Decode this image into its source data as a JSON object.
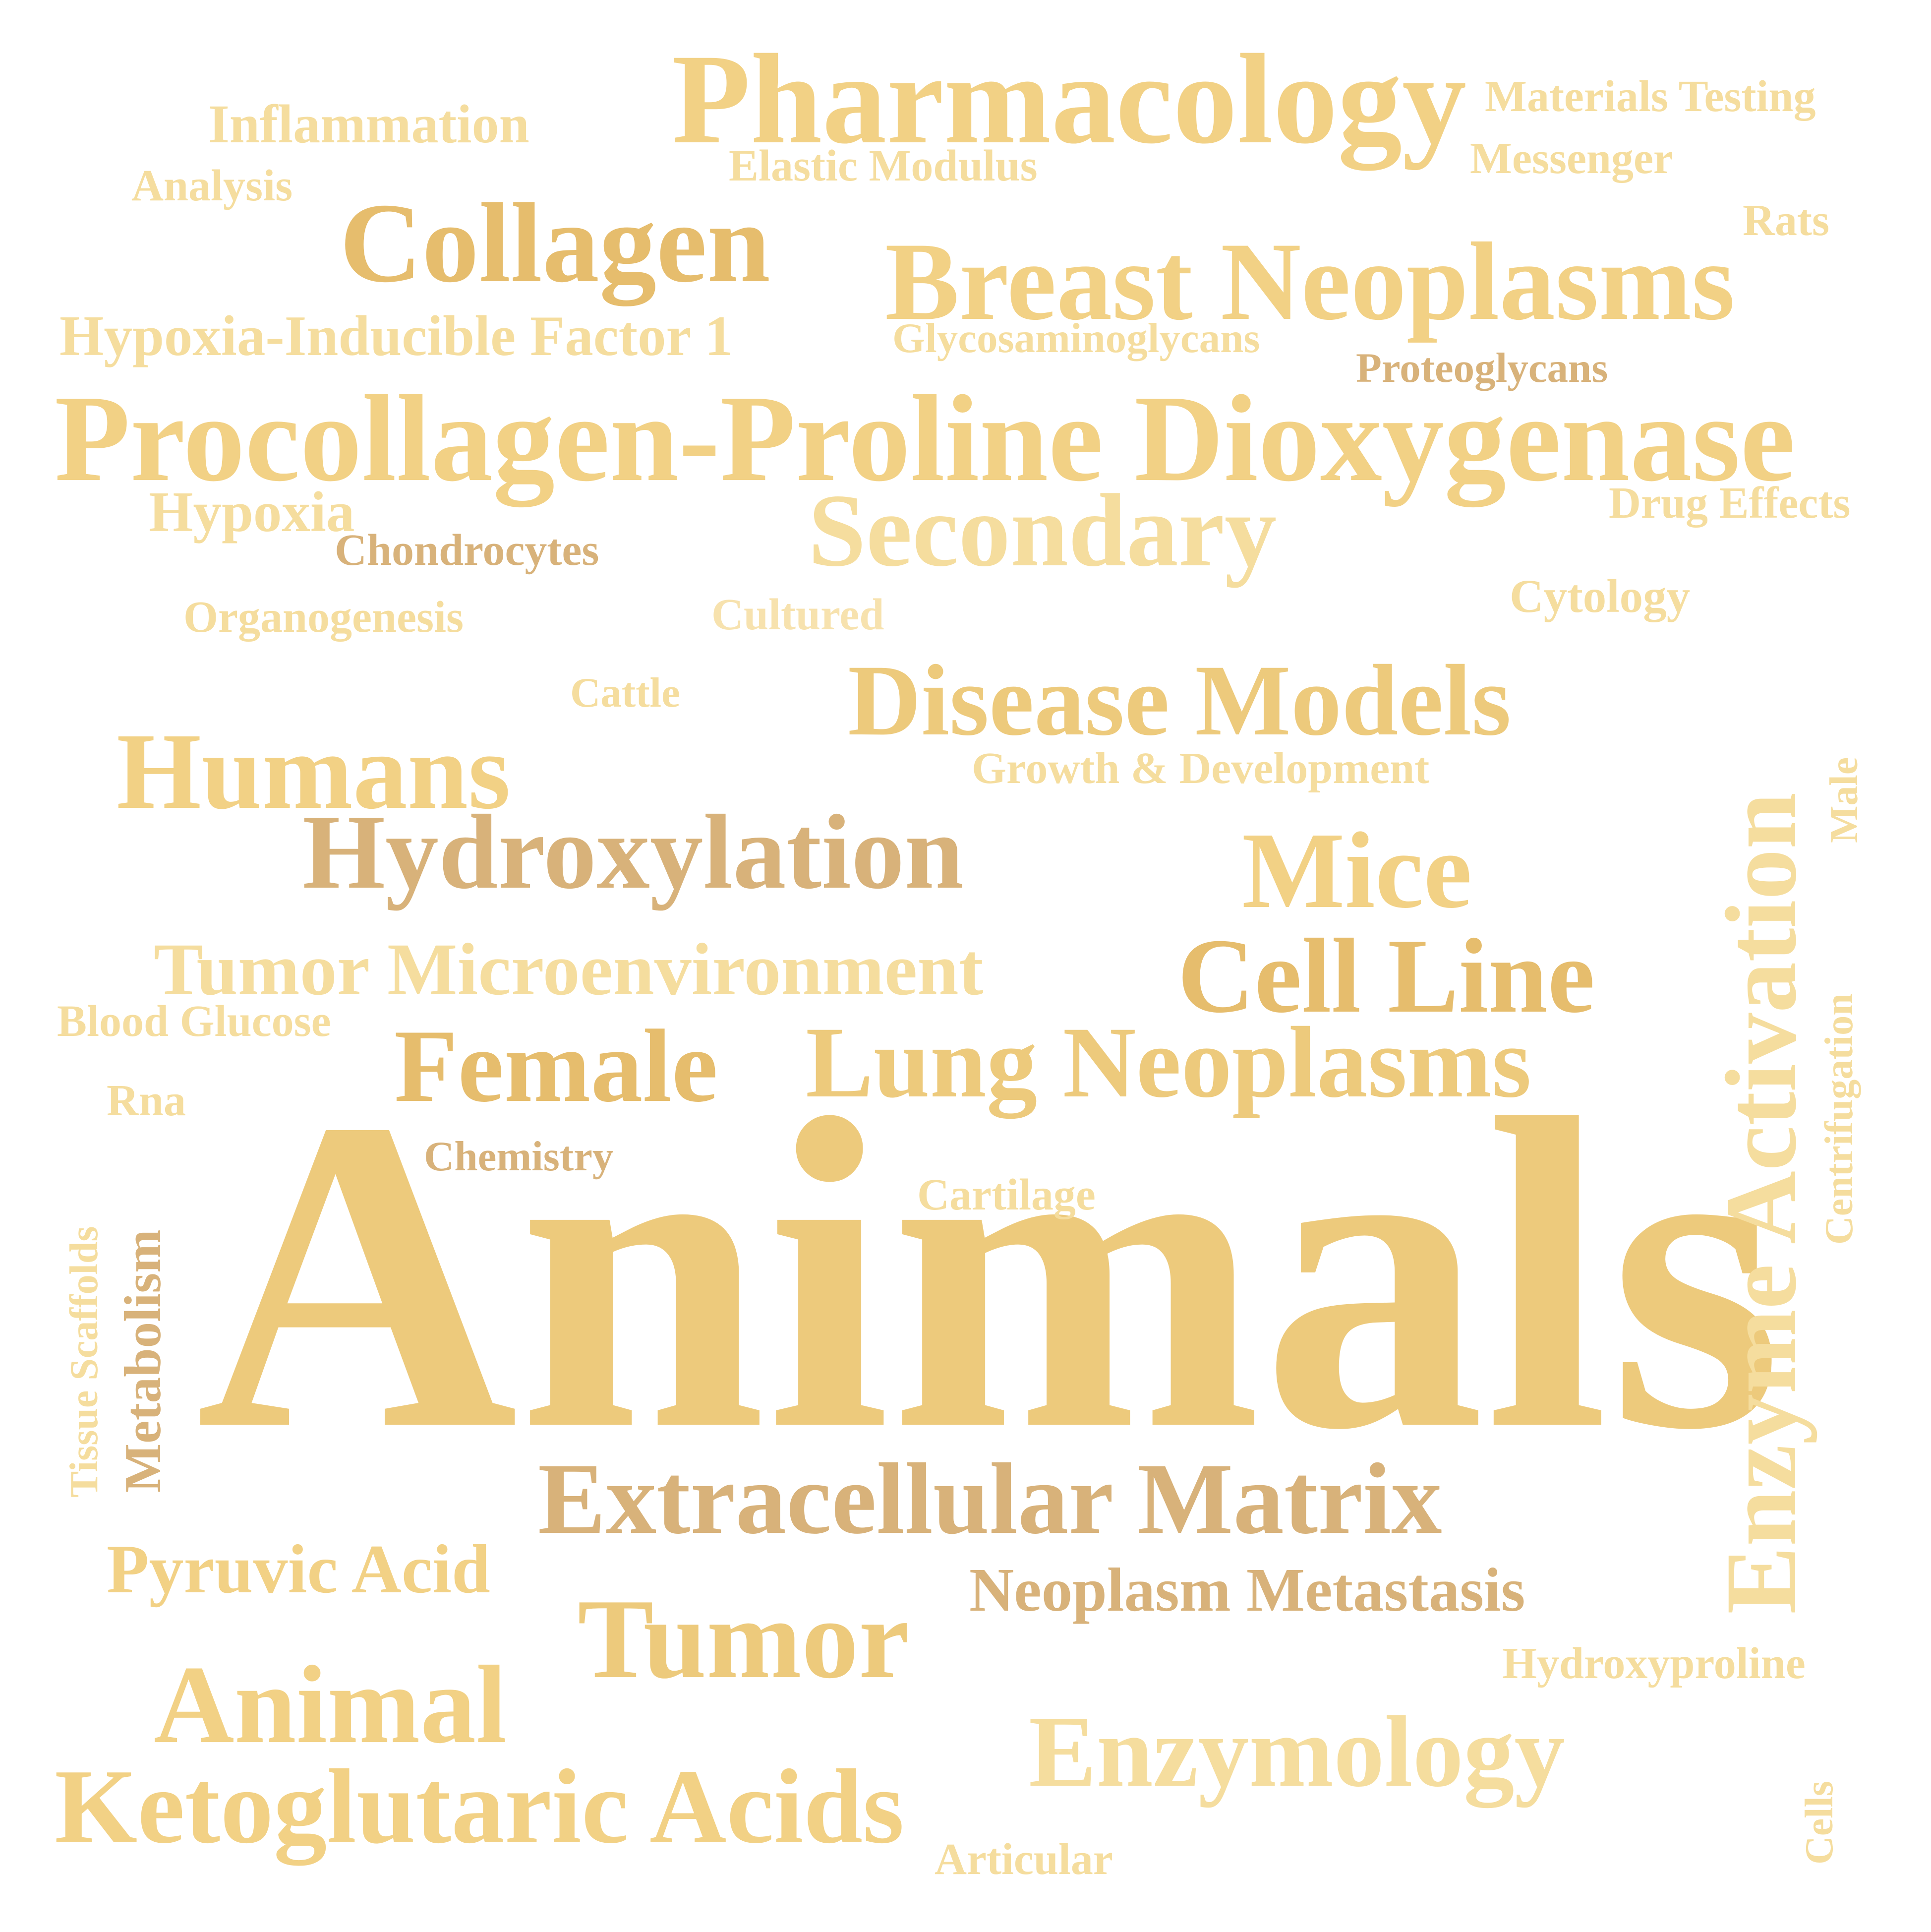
{
  "words": {
    "animals": "Animals",
    "procollagen": "Procollagen-Proline Dioxygenase",
    "pharmacology": "Pharmacology",
    "breast": "Breast Neoplasms",
    "collagen": "Collagen",
    "secondary": "Secondary",
    "disease_models": "Disease Models",
    "humans": "Humans",
    "hydroxylation": "Hydroxylation",
    "mice": "Mice",
    "cell_line": "Cell Line",
    "tumor_micro": "Tumor Microenvironment",
    "female": "Female",
    "lung_neoplasms": "Lung Neoplasms",
    "extracellular": "Extracellular Matrix",
    "tumor": "Tumor",
    "neoplasm_metastasis": "Neoplasm Metastasis",
    "enzymology": "Enzymology",
    "animal": "Animal",
    "ketoglutaric": "Ketoglutaric Acids",
    "pyruvic": "Pyruvic Acid",
    "hif": "Hypoxia-Inducible Factor 1",
    "inflammation": "Inflammation",
    "analysis": "Analysis",
    "elastic": "Elastic Modulus",
    "materials": "Materials Testing",
    "messenger": "Messenger",
    "rats": "Rats",
    "glycos": "Glycosaminoglycans",
    "proteo": "Proteoglycans",
    "hypoxia": "Hypoxia",
    "drug_effects": "Drug Effects",
    "chondrocytes": "Chondrocytes",
    "cytology": "Cytology",
    "organogenesis": "Organogenesis",
    "cultured": "Cultured",
    "cattle": "Cattle",
    "growth": "Growth & Development",
    "blood_glucose": "Blood Glucose",
    "rna": "Rna",
    "chemistry": "Chemistry",
    "cartilage": "Cartilage",
    "hydroxyproline": "Hydroxyproline",
    "articular": "Articular",
    "enzyme_activation": "Enzyme Activation",
    "male": "Male",
    "centrifugation": "Centrifugation",
    "cells": "Cells",
    "tissue_scaffolds": "Tissue Scaffolds",
    "metabolism": "Metabolism"
  },
  "palette": {
    "gold_light": "#f2d185",
    "gold_deep": "#e6bd6d",
    "tan": "#d8b27a",
    "pale": "#f5dd9e",
    "mid": "#edca7c",
    "cream": "#f7e2ae",
    "background": "#ffffff"
  }
}
